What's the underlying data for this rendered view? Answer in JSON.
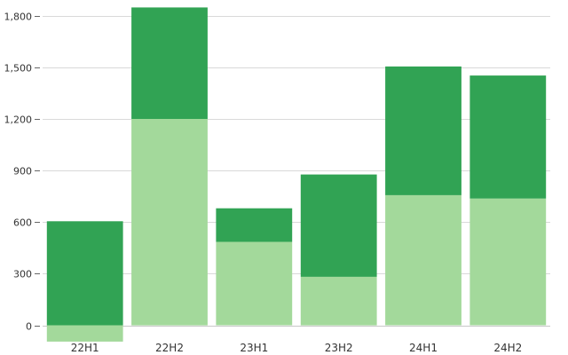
{
  "chart_data": {
    "type": "bar",
    "stacked": true,
    "categories": [
      "22H1",
      "22H2",
      "23H1",
      "23H2",
      "24H1",
      "24H2"
    ],
    "series": [
      {
        "values": [
          -95,
          1200,
          485,
          282,
          757,
          737
        ],
        "color": "#a3d99b"
      },
      {
        "values": [
          605,
          648,
          195,
          595,
          748,
          715
        ],
        "color": "#31a354"
      }
    ],
    "yticks": [
      0,
      300,
      600,
      900,
      1200,
      1500,
      1800
    ],
    "ytick_labels": [
      "0",
      "300",
      "600",
      "900",
      "1,200",
      "1,500",
      "1,800"
    ],
    "ylim": [
      -85,
      1850
    ],
    "grid": true,
    "legend": "none"
  }
}
